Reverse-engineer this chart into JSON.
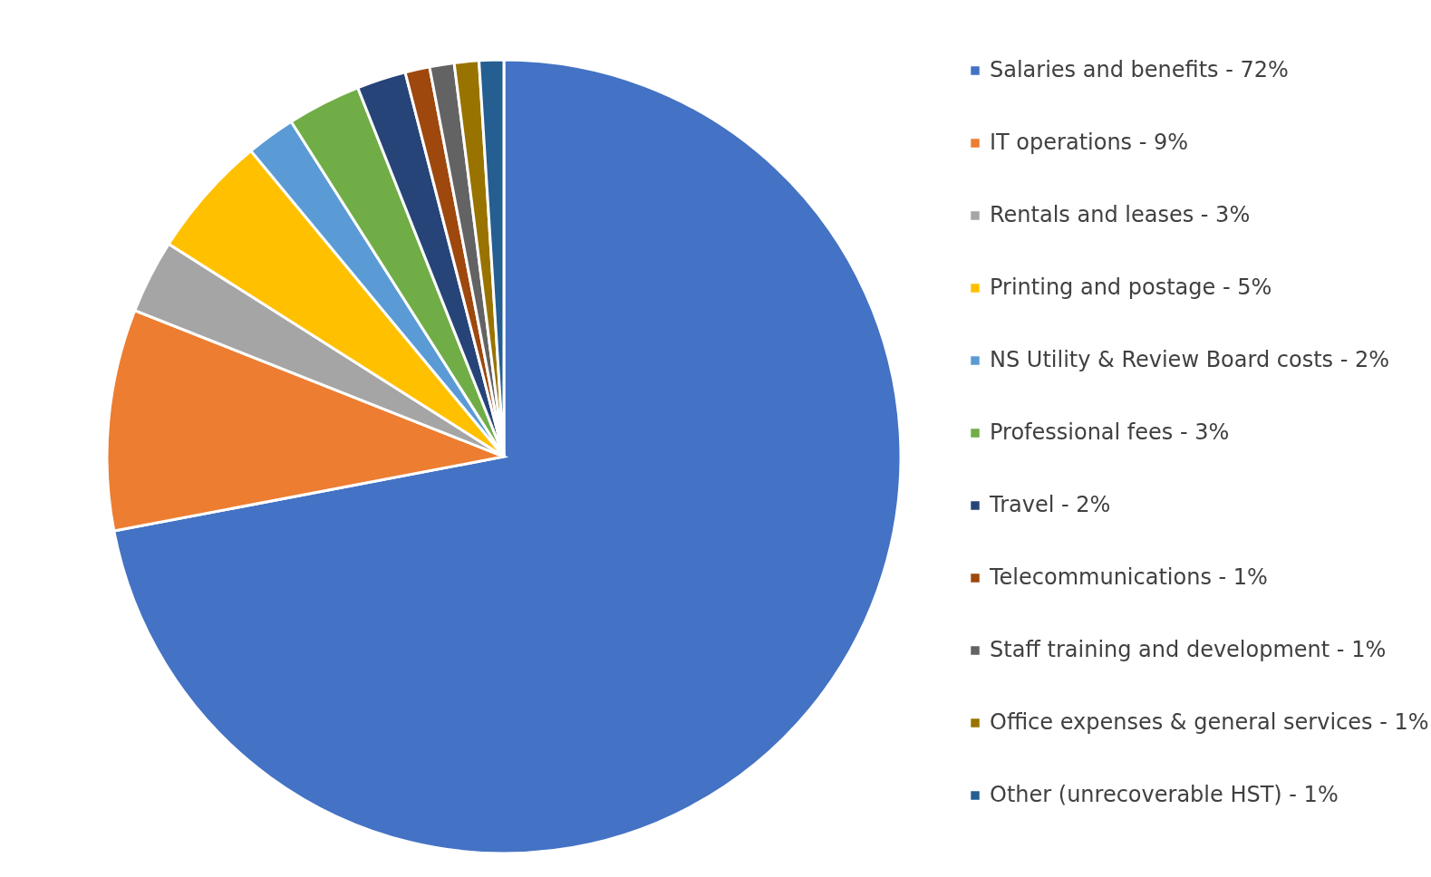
{
  "chart_data": {
    "type": "pie",
    "categories": [
      "Salaries and benefits - 72%",
      "IT operations - 9%",
      "Rentals and leases - 3%",
      "Printing and postage - 5%",
      "NS Utility & Review Board costs - 2%",
      "Professional fees - 3%",
      "Travel - 2%",
      "Telecommunications - 1%",
      "Staff training and development - 1%",
      "Office expenses & general services - 1%",
      "Other (unrecoverable HST) - 1%"
    ],
    "values": [
      72,
      9,
      3,
      5,
      2,
      3,
      2,
      1,
      1,
      1,
      1
    ],
    "colors": [
      "#4472c4",
      "#ed7d31",
      "#a5a5a5",
      "#ffc000",
      "#5b9bd5",
      "#70ad47",
      "#264478",
      "#9e480e",
      "#636363",
      "#997300",
      "#255e91"
    ],
    "legend": "right"
  }
}
